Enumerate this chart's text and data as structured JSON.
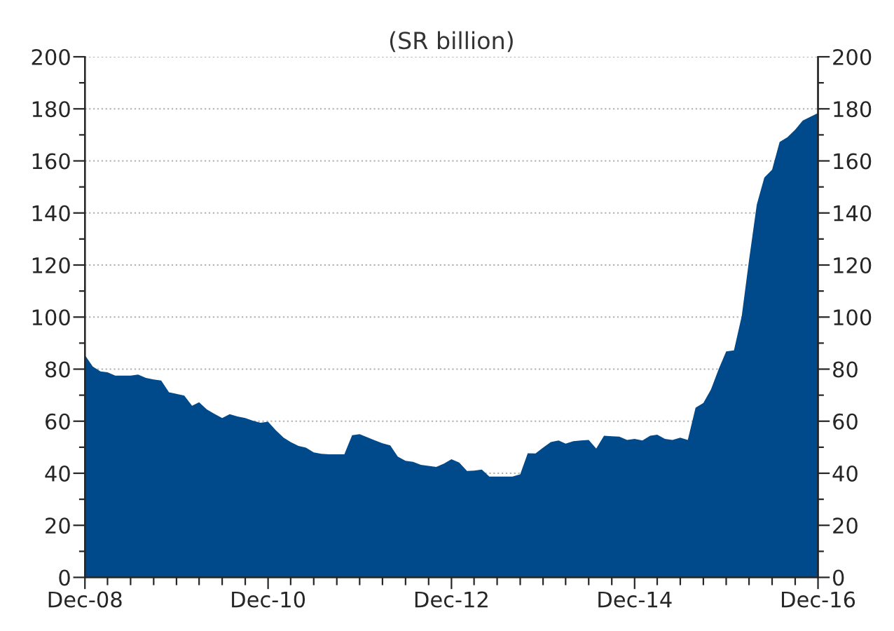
{
  "chart_data": {
    "type": "area",
    "subtitle": "(SR billion)",
    "x": [
      "2008-12",
      "2009-01",
      "2009-02",
      "2009-03",
      "2009-04",
      "2009-05",
      "2009-06",
      "2009-07",
      "2009-08",
      "2009-09",
      "2009-10",
      "2009-11",
      "2009-12",
      "2010-01",
      "2010-02",
      "2010-03",
      "2010-04",
      "2010-05",
      "2010-06",
      "2010-07",
      "2010-08",
      "2010-09",
      "2010-10",
      "2010-11",
      "2010-12",
      "2011-01",
      "2011-02",
      "2011-03",
      "2011-04",
      "2011-05",
      "2011-06",
      "2011-07",
      "2011-08",
      "2011-09",
      "2011-10",
      "2011-11",
      "2011-12",
      "2012-01",
      "2012-02",
      "2012-03",
      "2012-04",
      "2012-05",
      "2012-06",
      "2012-07",
      "2012-08",
      "2012-09",
      "2012-10",
      "2012-11",
      "2012-12",
      "2013-01",
      "2013-02",
      "2013-03",
      "2013-04",
      "2013-05",
      "2013-06",
      "2013-07",
      "2013-08",
      "2013-09",
      "2013-10",
      "2013-11",
      "2013-12",
      "2014-01",
      "2014-02",
      "2014-03",
      "2014-04",
      "2014-05",
      "2014-06",
      "2014-07",
      "2014-08",
      "2014-09",
      "2014-10",
      "2014-11",
      "2014-12",
      "2015-01",
      "2015-02",
      "2015-03",
      "2015-04",
      "2015-05",
      "2015-06",
      "2015-07",
      "2015-08",
      "2015-09",
      "2015-10",
      "2015-11",
      "2015-12",
      "2016-01",
      "2016-02",
      "2016-03",
      "2016-04",
      "2016-05",
      "2016-06",
      "2016-07",
      "2016-08",
      "2016-09",
      "2016-10",
      "2016-11",
      "2016-12"
    ],
    "series": [
      {
        "color": "#004a8c",
        "values": [
          85.4,
          81.0,
          79.1,
          78.8,
          77.5,
          77.5,
          77.5,
          77.9,
          76.6,
          76.0,
          75.6,
          71.1,
          70.5,
          69.8,
          65.9,
          67.3,
          64.5,
          62.8,
          61.2,
          62.7,
          61.8,
          61.2,
          60.2,
          59.4,
          59.8,
          56.5,
          53.7,
          52.0,
          50.5,
          49.8,
          48.0,
          47.5,
          47.3,
          47.3,
          47.3,
          54.6,
          55.0,
          53.8,
          52.6,
          51.5,
          50.7,
          46.4,
          44.8,
          44.4,
          43.2,
          42.8,
          42.4,
          43.7,
          45.4,
          44.1,
          40.9,
          41.0,
          41.4,
          38.7,
          38.7,
          38.7,
          38.7,
          39.6,
          47.7,
          47.6,
          49.8,
          52.0,
          52.6,
          51.4,
          52.3,
          52.6,
          52.8,
          49.5,
          54.4,
          54.2,
          54.1,
          52.8,
          53.2,
          52.6,
          54.4,
          54.8,
          53.2,
          52.8,
          53.7,
          52.8,
          65.2,
          67.0,
          72.1,
          80.0,
          86.8,
          87.2,
          100.4,
          121.8,
          143.2,
          153.6,
          156.6,
          167.3,
          169.1,
          172.0,
          175.5,
          177.0,
          178.4
        ]
      }
    ],
    "xlim": [
      "2008-12",
      "2016-12"
    ],
    "xticks": [
      {
        "value": "2008-12",
        "label": "Dec-08"
      },
      {
        "value": "2009-03",
        "label": null
      },
      {
        "value": "2009-06",
        "label": null
      },
      {
        "value": "2009-09",
        "label": null
      },
      {
        "value": "2009-12",
        "label": null
      },
      {
        "value": "2010-03",
        "label": null
      },
      {
        "value": "2010-06",
        "label": null
      },
      {
        "value": "2010-09",
        "label": null
      },
      {
        "value": "2010-12",
        "label": "Dec-10"
      },
      {
        "value": "2011-03",
        "label": null
      },
      {
        "value": "2011-06",
        "label": null
      },
      {
        "value": "2011-09",
        "label": null
      },
      {
        "value": "2011-12",
        "label": null
      },
      {
        "value": "2012-03",
        "label": null
      },
      {
        "value": "2012-06",
        "label": null
      },
      {
        "value": "2012-09",
        "label": null
      },
      {
        "value": "2012-12",
        "label": "Dec-12"
      },
      {
        "value": "2013-03",
        "label": null
      },
      {
        "value": "2013-06",
        "label": null
      },
      {
        "value": "2013-09",
        "label": null
      },
      {
        "value": "2013-12",
        "label": null
      },
      {
        "value": "2014-03",
        "label": null
      },
      {
        "value": "2014-06",
        "label": null
      },
      {
        "value": "2014-09",
        "label": null
      },
      {
        "value": "2014-12",
        "label": "Dec-14"
      },
      {
        "value": "2015-03",
        "label": null
      },
      {
        "value": "2015-06",
        "label": null
      },
      {
        "value": "2015-09",
        "label": null
      },
      {
        "value": "2015-12",
        "label": null
      },
      {
        "value": "2016-03",
        "label": null
      },
      {
        "value": "2016-06",
        "label": null
      },
      {
        "value": "2016-09",
        "label": null
      },
      {
        "value": "2016-12",
        "label": "Dec-16"
      }
    ],
    "ylim": [
      0,
      200
    ],
    "yticks": [
      0,
      {
        "value": 10,
        "label": null
      },
      20,
      {
        "value": 30,
        "label": null
      },
      40,
      {
        "value": 50,
        "label": null
      },
      60,
      {
        "value": 70,
        "label": null
      },
      80,
      {
        "value": 90,
        "label": null
      },
      100,
      {
        "value": 110,
        "label": null
      },
      120,
      {
        "value": 130,
        "label": null
      },
      140,
      {
        "value": 150,
        "label": null
      },
      160,
      {
        "value": 170,
        "label": null
      },
      180,
      {
        "value": 190,
        "label": null
      },
      200
    ],
    "y2lim": [
      0,
      200
    ],
    "y2ticks": [
      0,
      {
        "value": 10,
        "label": null
      },
      20,
      {
        "value": 30,
        "label": null
      },
      40,
      {
        "value": 50,
        "label": null
      },
      60,
      {
        "value": 70,
        "label": null
      },
      80,
      {
        "value": 90,
        "label": null
      },
      100,
      {
        "value": 110,
        "label": null
      },
      120,
      {
        "value": 130,
        "label": null
      },
      140,
      {
        "value": 150,
        "label": null
      },
      160,
      {
        "value": 170,
        "label": null
      },
      180,
      {
        "value": 190,
        "label": null
      },
      200
    ],
    "grid": "y",
    "legend": false
  }
}
